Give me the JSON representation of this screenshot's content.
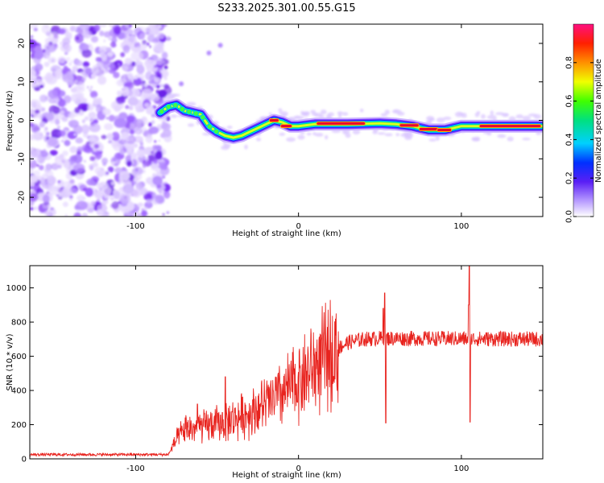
{
  "title": "S233.2025.301.00.55.G15",
  "colors": {
    "snr_line": "#e8231e",
    "noise": "#9a4dff",
    "ridge_core": "#e80030"
  },
  "chart_data": [
    {
      "type": "heatmap",
      "name": "spectrogram",
      "xlabel": "Height of straight line (km)",
      "ylabel": "Frequency (Hz)",
      "xlim": [
        -165,
        150
      ],
      "ylim": [
        -25,
        25
      ],
      "xticks": [
        -100,
        0,
        100
      ],
      "yticks": [
        20,
        10,
        0,
        -10,
        -20
      ],
      "colorbar": {
        "label": "Normalized spectral amplitude",
        "range": [
          0,
          1
        ],
        "ticks": [
          0.0,
          0.2,
          0.4,
          0.6,
          0.8
        ]
      },
      "noise_region_end_km": -83,
      "ridge": [
        {
          "x": -85,
          "f": 2.0
        },
        {
          "x": -80,
          "f": 3.5
        },
        {
          "x": -75,
          "f": 4.0
        },
        {
          "x": -70,
          "f": 2.5
        },
        {
          "x": -65,
          "f": 2.0
        },
        {
          "x": -60,
          "f": 1.5
        },
        {
          "x": -55,
          "f": -1.5
        },
        {
          "x": -50,
          "f": -3.0
        },
        {
          "x": -45,
          "f": -4.0
        },
        {
          "x": -40,
          "f": -4.5
        },
        {
          "x": -35,
          "f": -4.0
        },
        {
          "x": -30,
          "f": -3.0
        },
        {
          "x": -25,
          "f": -2.0
        },
        {
          "x": -20,
          "f": -1.0
        },
        {
          "x": -15,
          "f": 0.0
        },
        {
          "x": -10,
          "f": -0.5
        },
        {
          "x": -5,
          "f": -1.5
        },
        {
          "x": 0,
          "f": -1.5
        },
        {
          "x": 10,
          "f": -1.0
        },
        {
          "x": 30,
          "f": -1.0
        },
        {
          "x": 50,
          "f": -0.8
        },
        {
          "x": 60,
          "f": -1.0
        },
        {
          "x": 70,
          "f": -1.5
        },
        {
          "x": 80,
          "f": -2.5
        },
        {
          "x": 90,
          "f": -2.5
        },
        {
          "x": 100,
          "f": -1.5
        },
        {
          "x": 110,
          "f": -1.5
        },
        {
          "x": 130,
          "f": -1.5
        },
        {
          "x": 150,
          "f": -1.5
        }
      ],
      "hot_segments": [
        {
          "x0": -17,
          "x1": -13,
          "f": 0.0
        },
        {
          "x0": -10,
          "x1": -5,
          "f": -1.5
        },
        {
          "x0": 12,
          "x1": 40,
          "f": -0.8
        },
        {
          "x0": 63,
          "x1": 73,
          "f": -1.3
        },
        {
          "x0": 75,
          "x1": 85,
          "f": -2.3
        },
        {
          "x0": 86,
          "x1": 93,
          "f": -2.5
        },
        {
          "x0": 112,
          "x1": 148,
          "f": -1.5
        }
      ]
    },
    {
      "type": "line",
      "name": "snr",
      "xlabel": "Height of straight line (km)",
      "ylabel": "SNR (10 * v/v)",
      "xlim": [
        -165,
        150
      ],
      "ylim": [
        0,
        1130
      ],
      "xticks": [
        -100,
        0,
        100
      ],
      "yticks": [
        0,
        200,
        400,
        600,
        800,
        1000
      ],
      "series": [
        {
          "name": "SNR",
          "trend": [
            {
              "x": -165,
              "y": 25
            },
            {
              "x": -80,
              "y": 25
            },
            {
              "x": -75,
              "y": 110
            },
            {
              "x": -70,
              "y": 170
            },
            {
              "x": -60,
              "y": 185
            },
            {
              "x": -50,
              "y": 205
            },
            {
              "x": -40,
              "y": 230
            },
            {
              "x": -30,
              "y": 270
            },
            {
              "x": -20,
              "y": 320
            },
            {
              "x": -10,
              "y": 380
            },
            {
              "x": 0,
              "y": 460
            },
            {
              "x": 10,
              "y": 540
            },
            {
              "x": 20,
              "y": 620
            },
            {
              "x": 30,
              "y": 680
            },
            {
              "x": 40,
              "y": 700
            },
            {
              "x": 50,
              "y": 705
            },
            {
              "x": 150,
              "y": 700
            }
          ],
          "spikes": [
            {
              "x": -45,
              "y": 480
            },
            {
              "x": -62,
              "y": 320
            },
            {
              "x": 53,
              "y": 970
            },
            {
              "x": 53.5,
              "y": 210
            },
            {
              "x": 105,
              "y": 1130
            },
            {
              "x": 105.4,
              "y": 215
            },
            {
              "x": 104.5,
              "y": 900
            },
            {
              "x": 52,
              "y": 880
            }
          ]
        }
      ]
    }
  ]
}
